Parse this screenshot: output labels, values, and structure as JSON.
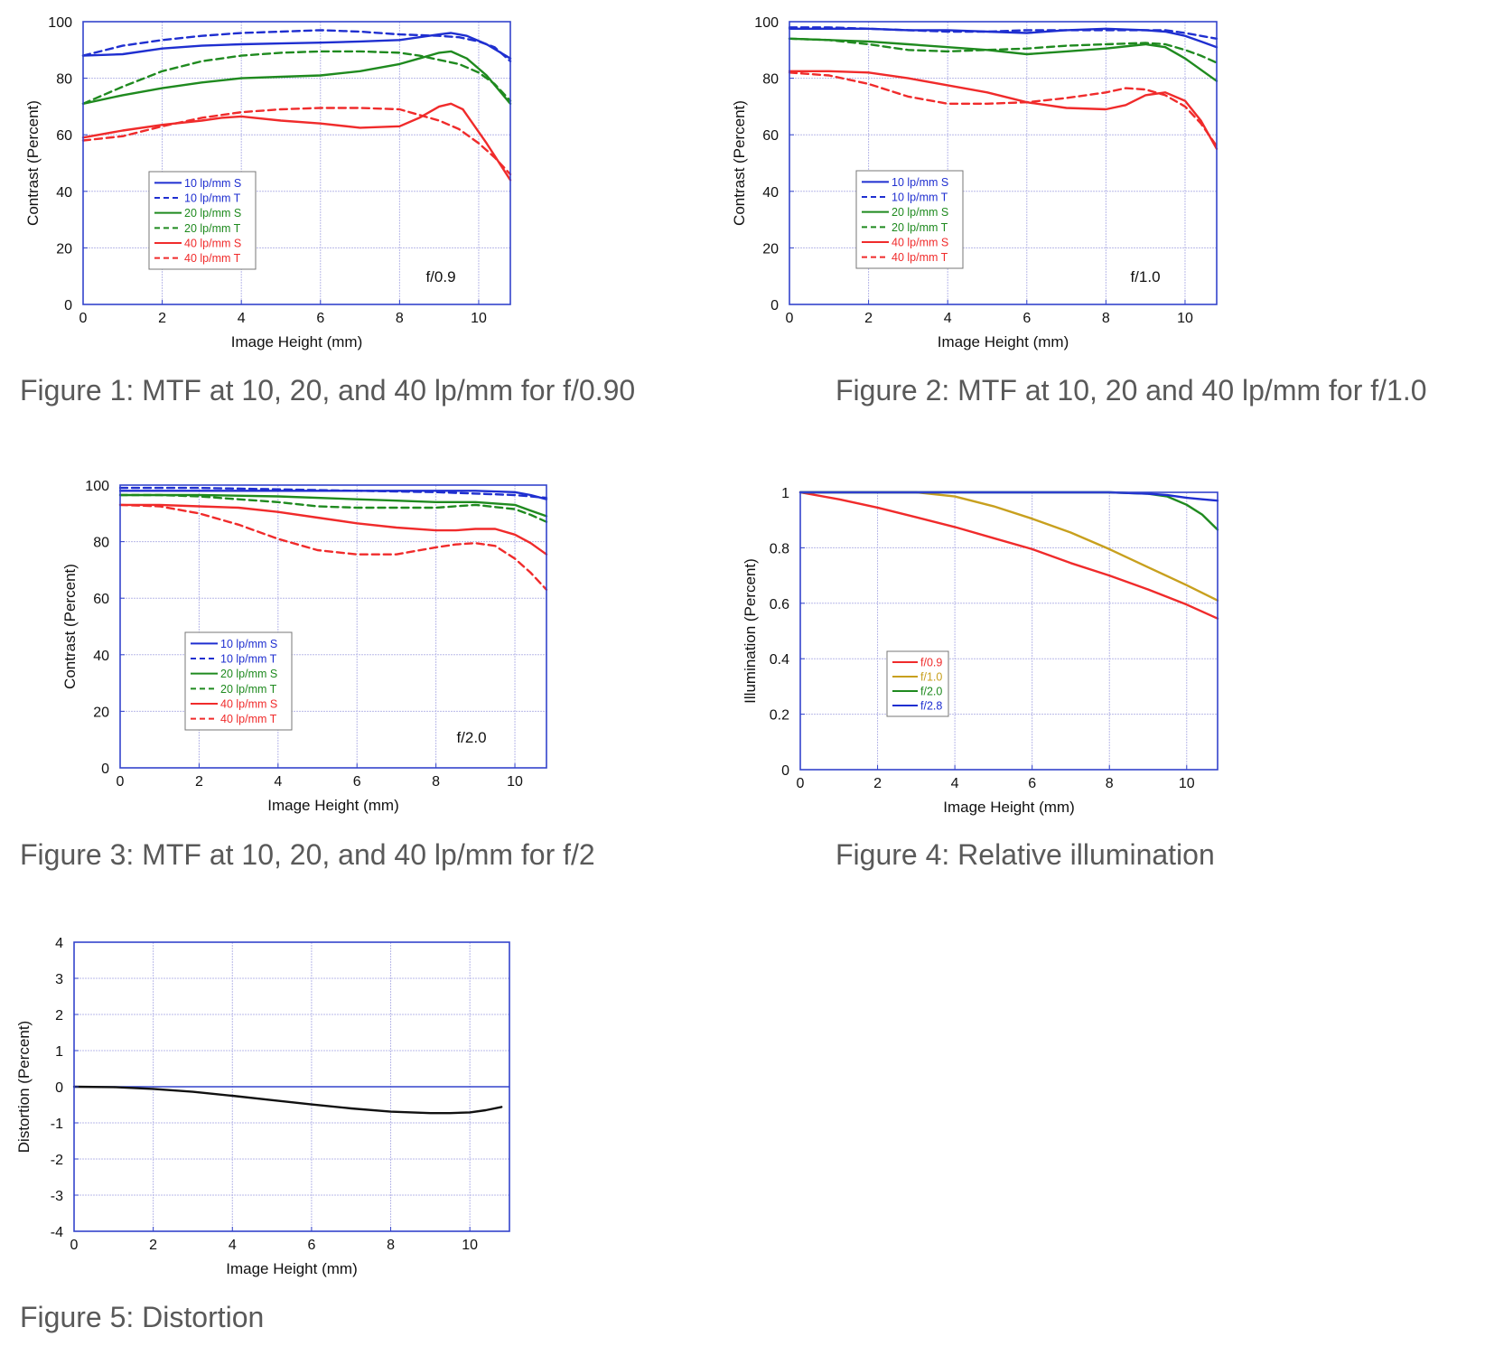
{
  "chart_data": [
    {
      "type": "line",
      "caption": "Figure 1:  MTF at 10, 20, and 40 lp/mm for f/0.90",
      "annotation": "f/0.9",
      "xlabel": "Image Height (mm)",
      "ylabel": "Contrast (Percent)",
      "xlim": [
        0,
        10.8
      ],
      "ylim": [
        0,
        100
      ],
      "xticks": [
        0,
        2,
        4,
        6,
        8,
        10
      ],
      "yticks": [
        0,
        20,
        40,
        60,
        80,
        100
      ],
      "grid": true,
      "legend_position": "lower-left",
      "series": [
        {
          "name": "10 lp/mm S",
          "color": "#1f2fd0",
          "dash": false,
          "x": [
            0,
            1,
            2,
            3,
            4,
            5,
            6,
            7,
            8,
            8.5,
            9,
            9.3,
            9.7,
            10.2,
            10.8
          ],
          "y": [
            88,
            88.5,
            90.5,
            91.5,
            92,
            92.3,
            92.6,
            93,
            93.5,
            94.5,
            95.5,
            96,
            95,
            92,
            87
          ]
        },
        {
          "name": "10 lp/mm T",
          "color": "#1f2fd0",
          "dash": true,
          "x": [
            0,
            1,
            2,
            3,
            4,
            5,
            6,
            7,
            8,
            9,
            9.5,
            10,
            10.4,
            10.8
          ],
          "y": [
            88,
            91.5,
            93.5,
            95,
            96,
            96.5,
            97,
            96.5,
            95.5,
            95,
            94.5,
            93,
            91,
            86
          ]
        },
        {
          "name": "20 lp/mm S",
          "color": "#1f8a1f",
          "dash": false,
          "x": [
            0,
            1,
            2,
            3,
            4,
            5,
            6,
            7,
            8,
            8.5,
            9,
            9.3,
            9.7,
            10.2,
            10.8
          ],
          "y": [
            71,
            74,
            76.5,
            78.5,
            80,
            80.5,
            81,
            82.5,
            85,
            87,
            89,
            89.5,
            87,
            81,
            71
          ]
        },
        {
          "name": "20 lp/mm T",
          "color": "#1f8a1f",
          "dash": true,
          "x": [
            0,
            1,
            2,
            3,
            4,
            5,
            6,
            7,
            8,
            8.5,
            9,
            9.5,
            10,
            10.4,
            10.8
          ],
          "y": [
            71,
            77,
            82.5,
            86,
            88,
            89,
            89.5,
            89.5,
            89,
            88,
            86.5,
            85,
            82,
            78,
            72
          ]
        },
        {
          "name": "40 lp/mm S",
          "color": "#f02b2b",
          "dash": false,
          "x": [
            0,
            1,
            2,
            3,
            3.5,
            4,
            5,
            6,
            7,
            8,
            8.5,
            9,
            9.3,
            9.6,
            10.2,
            10.8
          ],
          "y": [
            59,
            61.5,
            63.5,
            65,
            66,
            66.5,
            65,
            64,
            62.5,
            63,
            66,
            70,
            71,
            69,
            57,
            44
          ]
        },
        {
          "name": "40 lp/mm T",
          "color": "#f02b2b",
          "dash": true,
          "x": [
            0,
            1,
            2,
            3,
            4,
            5,
            6,
            7,
            8,
            8.5,
            9,
            9.5,
            10,
            10.4,
            10.8
          ],
          "y": [
            58,
            59.5,
            63,
            66,
            68,
            69,
            69.5,
            69.5,
            69,
            67,
            65,
            62,
            57,
            52,
            46
          ]
        }
      ]
    },
    {
      "type": "line",
      "caption": "Figure 2:  MTF at 10, 20 and 40 lp/mm for f/1.0",
      "annotation": "f/1.0",
      "xlabel": "Image Height (mm)",
      "ylabel": "Contrast (Percent)",
      "xlim": [
        0,
        10.8
      ],
      "ylim": [
        0,
        100
      ],
      "xticks": [
        0,
        2,
        4,
        6,
        8,
        10
      ],
      "yticks": [
        0,
        20,
        40,
        60,
        80,
        100
      ],
      "grid": true,
      "legend_position": "lower-left",
      "series": [
        {
          "name": "10 lp/mm S",
          "color": "#1f2fd0",
          "dash": false,
          "x": [
            0,
            1,
            2,
            3,
            4,
            5,
            6,
            7,
            8,
            9,
            9.5,
            10,
            10.4,
            10.8
          ],
          "y": [
            97.5,
            97.5,
            97.5,
            97,
            97,
            96.5,
            96,
            97,
            97.5,
            97,
            96.5,
            95,
            93,
            91
          ]
        },
        {
          "name": "10 lp/mm T",
          "color": "#1f2fd0",
          "dash": true,
          "x": [
            0,
            1,
            2,
            3,
            4,
            5,
            6,
            7,
            8,
            9,
            9.5,
            10,
            10.4,
            10.8
          ],
          "y": [
            98,
            98,
            97.5,
            97,
            96.5,
            96.5,
            97,
            97,
            97,
            97,
            97,
            96,
            95,
            94
          ]
        },
        {
          "name": "20 lp/mm S",
          "color": "#1f8a1f",
          "dash": false,
          "x": [
            0,
            1,
            2,
            3,
            4,
            5,
            6,
            7,
            8,
            9,
            9.5,
            10,
            10.4,
            10.8
          ],
          "y": [
            94,
            93.5,
            93,
            92,
            91,
            90,
            88.5,
            89.5,
            90.5,
            92,
            91,
            87,
            83,
            79
          ]
        },
        {
          "name": "20 lp/mm T",
          "color": "#1f8a1f",
          "dash": true,
          "x": [
            0,
            1,
            2,
            3,
            4,
            5,
            6,
            7,
            8,
            9,
            9.5,
            10,
            10.4,
            10.8
          ],
          "y": [
            94,
            93.5,
            92,
            90,
            89.5,
            90,
            90.5,
            91.5,
            92,
            92.5,
            92,
            90,
            88,
            85.5
          ]
        },
        {
          "name": "40 lp/mm S",
          "color": "#f02b2b",
          "dash": false,
          "x": [
            0,
            1,
            2,
            3,
            4,
            5,
            6,
            7,
            8,
            8.5,
            9,
            9.5,
            10,
            10.4,
            10.8
          ],
          "y": [
            82.5,
            82.5,
            82,
            80,
            77.5,
            75,
            71.5,
            69.5,
            69,
            70.5,
            74,
            75,
            72,
            65,
            55
          ]
        },
        {
          "name": "40 lp/mm T",
          "color": "#f02b2b",
          "dash": true,
          "x": [
            0,
            1,
            2,
            3,
            4,
            5,
            6,
            7,
            8,
            8.5,
            9,
            9.5,
            10,
            10.4,
            10.8
          ],
          "y": [
            82,
            81,
            78,
            73.5,
            71,
            71,
            71.5,
            73,
            75,
            76.5,
            76,
            74,
            70,
            64,
            56
          ]
        }
      ]
    },
    {
      "type": "line",
      "caption": "Figure 3:  MTF at 10, 20, and 40 lp/mm for f/2",
      "annotation": "f/2.0",
      "xlabel": "Image Height (mm)",
      "ylabel": "Contrast (Percent)",
      "xlim": [
        0,
        10.8
      ],
      "ylim": [
        0,
        100
      ],
      "xticks": [
        0,
        2,
        4,
        6,
        8,
        10
      ],
      "yticks": [
        0,
        20,
        40,
        60,
        80,
        100
      ],
      "grid": true,
      "legend_position": "lower-left",
      "series": [
        {
          "name": "10 lp/mm S",
          "color": "#1f2fd0",
          "dash": false,
          "x": [
            0,
            2,
            4,
            6,
            8,
            9,
            10,
            10.4,
            10.8
          ],
          "y": [
            98,
            98,
            98,
            98,
            98,
            98,
            97.5,
            96.5,
            95
          ]
        },
        {
          "name": "10 lp/mm T",
          "color": "#1f2fd0",
          "dash": true,
          "x": [
            0,
            2,
            4,
            6,
            8,
            9,
            10,
            10.4,
            10.8
          ],
          "y": [
            99,
            99,
            98.5,
            98,
            97.5,
            97,
            96.5,
            96,
            95.5
          ]
        },
        {
          "name": "20 lp/mm S",
          "color": "#1f8a1f",
          "dash": false,
          "x": [
            0,
            2,
            4,
            6,
            7,
            8,
            9,
            10,
            10.4,
            10.8
          ],
          "y": [
            96.5,
            96.5,
            96,
            95,
            94.5,
            94,
            94,
            93,
            91,
            89
          ]
        },
        {
          "name": "20 lp/mm T",
          "color": "#1f8a1f",
          "dash": true,
          "x": [
            0,
            1,
            2,
            3,
            4,
            5,
            6,
            7,
            8,
            9,
            10,
            10.4,
            10.8
          ],
          "y": [
            96.5,
            96.5,
            96,
            95,
            94,
            92.5,
            92,
            92,
            92,
            93,
            91.5,
            89.5,
            87
          ]
        },
        {
          "name": "40 lp/mm S",
          "color": "#f02b2b",
          "dash": false,
          "x": [
            0,
            1,
            2,
            3,
            4,
            5,
            6,
            7,
            8,
            8.5,
            9,
            9.5,
            10,
            10.4,
            10.8
          ],
          "y": [
            93,
            93,
            92.5,
            92,
            90.5,
            88.5,
            86.5,
            85,
            84,
            84,
            84.5,
            84.5,
            82.5,
            79.5,
            75.5
          ]
        },
        {
          "name": "40 lp/mm T",
          "color": "#f02b2b",
          "dash": true,
          "x": [
            0,
            1,
            2,
            3,
            4,
            5,
            6,
            7,
            8,
            8.5,
            9,
            9.5,
            10,
            10.4,
            10.8
          ],
          "y": [
            93,
            92.5,
            90,
            86,
            81,
            77,
            75.5,
            75.5,
            78,
            79,
            79.5,
            78.5,
            74,
            69,
            63
          ]
        }
      ]
    },
    {
      "type": "line",
      "caption": "Figure 4:  Relative illumination",
      "xlabel": "Image Height (mm)",
      "ylabel": "Illumination (Percent)",
      "xlim": [
        0,
        10.8
      ],
      "ylim": [
        0,
        1
      ],
      "xticks": [
        0,
        2,
        4,
        6,
        8,
        10
      ],
      "yticks": [
        0,
        0.2,
        0.4,
        0.6,
        0.8,
        1
      ],
      "grid": true,
      "legend_position": "lower-left",
      "series": [
        {
          "name": "f/0.9",
          "color": "#f02b2b",
          "dash": false,
          "x": [
            0,
            1,
            2,
            3,
            4,
            5,
            6,
            7,
            8,
            9,
            10,
            10.8
          ],
          "y": [
            1,
            0.975,
            0.945,
            0.91,
            0.875,
            0.835,
            0.795,
            0.745,
            0.7,
            0.65,
            0.595,
            0.545
          ]
        },
        {
          "name": "f/1.0",
          "color": "#c8a01e",
          "dash": false,
          "x": [
            0,
            2,
            3,
            4,
            5,
            6,
            7,
            8,
            9,
            10,
            10.8
          ],
          "y": [
            1,
            1,
            1,
            0.985,
            0.95,
            0.905,
            0.855,
            0.795,
            0.73,
            0.665,
            0.61
          ]
        },
        {
          "name": "f/2.0",
          "color": "#1f8a1f",
          "dash": false,
          "x": [
            0,
            2,
            4,
            6,
            8,
            9,
            9.5,
            10,
            10.4,
            10.8
          ],
          "y": [
            1,
            1,
            1,
            1,
            1,
            0.995,
            0.985,
            0.955,
            0.92,
            0.865
          ]
        },
        {
          "name": "f/2.8",
          "color": "#1f2fd0",
          "dash": false,
          "x": [
            0,
            2,
            4,
            6,
            8,
            9,
            9.5,
            10,
            10.4,
            10.8
          ],
          "y": [
            1,
            1,
            1,
            1,
            1,
            0.995,
            0.99,
            0.98,
            0.975,
            0.97
          ]
        }
      ]
    },
    {
      "type": "line",
      "caption": "Figure 5:  Distortion",
      "xlabel": "Image Height (mm)",
      "ylabel": "Distortion (Percent)",
      "xlim": [
        0,
        11
      ],
      "ylim": [
        -4,
        4
      ],
      "xticks": [
        0,
        2,
        4,
        6,
        8,
        10
      ],
      "yticks": [
        -4,
        -3,
        -2,
        -1,
        0,
        1,
        2,
        3,
        4
      ],
      "grid": true,
      "series": [
        {
          "name": "",
          "color": "#111111",
          "dash": false,
          "x": [
            0,
            1,
            2,
            3,
            4,
            5,
            6,
            7,
            8,
            9,
            9.5,
            10,
            10.4,
            10.8
          ],
          "y": [
            0,
            -0.01,
            -0.06,
            -0.14,
            -0.25,
            -0.37,
            -0.49,
            -0.6,
            -0.69,
            -0.73,
            -0.73,
            -0.71,
            -0.65,
            -0.56
          ]
        }
      ]
    }
  ]
}
